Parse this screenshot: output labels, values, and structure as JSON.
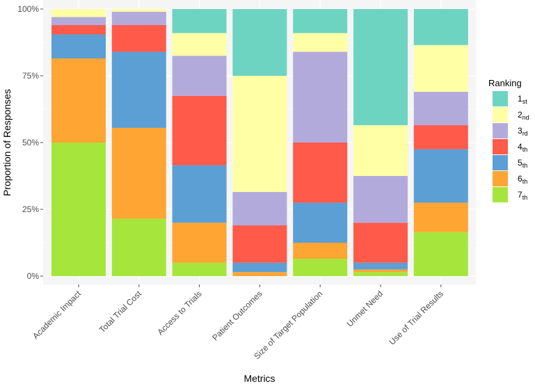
{
  "chart_data": {
    "type": "bar",
    "stacked": true,
    "xlabel": "Metrics",
    "ylabel": "Proportion of Responses",
    "ylim": [
      0,
      1
    ],
    "y_ticks": [
      "0%",
      "25%",
      "50%",
      "75%",
      "100%"
    ],
    "categories": [
      "Academic Impact",
      "Total Trial Cost",
      "Access to Trials",
      "Patient Outcomes",
      "Size of Target Population",
      "Unmet Need",
      "Use of Trial Results"
    ],
    "legend_title": "Ranking",
    "legend_position": "right",
    "series": [
      {
        "name": "7th",
        "rank": "7",
        "suffix": "th",
        "color": "#a6e63c",
        "values": [
          0.5,
          0.215,
          0.05,
          0.0,
          0.065,
          0.015,
          0.165
        ]
      },
      {
        "name": "6th",
        "rank": "6",
        "suffix": "th",
        "color": "#ffa533",
        "values": [
          0.315,
          0.34,
          0.15,
          0.015,
          0.06,
          0.01,
          0.11
        ]
      },
      {
        "name": "5th",
        "rank": "5",
        "suffix": "th",
        "color": "#5b9fd4",
        "values": [
          0.09,
          0.285,
          0.215,
          0.035,
          0.15,
          0.025,
          0.2
        ]
      },
      {
        "name": "4th",
        "rank": "4",
        "suffix": "th",
        "color": "#ff5a4a",
        "values": [
          0.035,
          0.1,
          0.26,
          0.14,
          0.225,
          0.15,
          0.09
        ]
      },
      {
        "name": "3rd",
        "rank": "3",
        "suffix": "rd",
        "color": "#b3aadc",
        "values": [
          0.03,
          0.05,
          0.15,
          0.125,
          0.34,
          0.175,
          0.125
        ]
      },
      {
        "name": "2nd",
        "rank": "2",
        "suffix": "nd",
        "color": "#ffffa6",
        "values": [
          0.03,
          0.01,
          0.085,
          0.435,
          0.07,
          0.19,
          0.175
        ]
      },
      {
        "name": "1st",
        "rank": "1",
        "suffix": "st",
        "color": "#6dd4c2",
        "values": [
          0.0,
          0.0,
          0.09,
          0.25,
          0.09,
          0.435,
          0.135
        ]
      }
    ]
  }
}
